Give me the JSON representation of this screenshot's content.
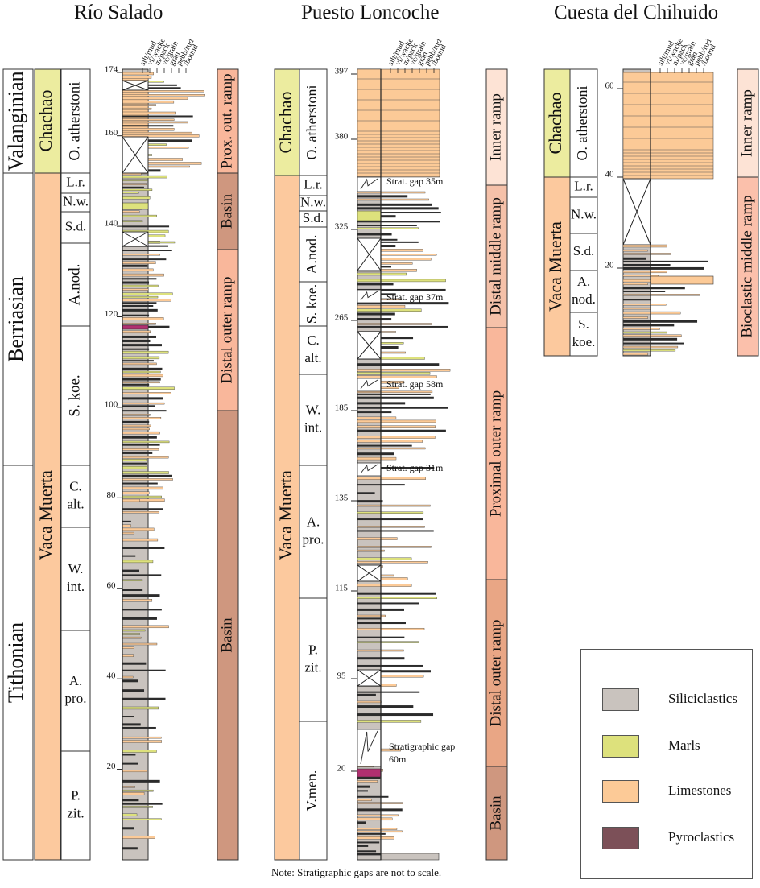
{
  "colors": {
    "siliciclastics": "#c9c3be",
    "marls": "#dde17c",
    "limestones": "#fcca97",
    "pyroclastics": "#7c5058",
    "bed_pyroclastic": "#b03070",
    "stage_fill": "#ffffff",
    "formation_chachao": "#ecec9f",
    "formation_vaca_muerta": "#fcc99e",
    "env_inner_ramp": "#fde3d5",
    "env_prox_outer_ramp": "#f9b79b",
    "env_distal_outer_ramp": "#e9a685",
    "env_basin": "#cf977f",
    "env_distal_middle_ramp": "#f5c1a9",
    "env_bioclastic_middle_ramp": "#fbc0ab"
  },
  "grain_scale": [
    "silt/mud",
    "vf/wacke",
    "m/pack",
    "vc/grain",
    "gran",
    "pebb/rud",
    "/bound"
  ],
  "sections": [
    {
      "name": "Río Salado",
      "ticks": [
        "20",
        "40",
        "60",
        "80",
        "100",
        "120",
        "140",
        "160",
        "174"
      ],
      "stages": [
        "Valanginian",
        "Berriasian",
        "Tithonian"
      ],
      "formations": [
        "Chachao",
        "Vaca Muerta"
      ],
      "zones": [
        "O. atherstoni",
        "L.r.",
        "N.w.",
        "S.d.",
        "A.nod.",
        "S. koe.",
        "C. alt.",
        "W. int.",
        "A. pro.",
        "P. zit."
      ],
      "environments": [
        "Prox. out. ramp",
        "Basin",
        "Distal outer ramp",
        "Basin"
      ]
    },
    {
      "name": "Puesto Loncoche",
      "ticks": [
        "20",
        "95",
        "115",
        "135",
        "185",
        "265",
        "325",
        "380",
        "397"
      ],
      "formations": [
        "Chachao",
        "Vaca Muerta"
      ],
      "zones": [
        "O. atherstoni",
        "L.r.",
        "N.w.",
        "S.d.",
        "A.nod.",
        "S. koe.",
        "C. alt.",
        "W. int.",
        "A. pro.",
        "P. zit.",
        "V.men."
      ],
      "environments": [
        "Inner ramp",
        "Distal middle ramp",
        "Proximal outer ramp",
        "Distal outer ramp",
        "Basin"
      ],
      "gaps": [
        "Strat. gap 35m",
        "Strat. gap 37m",
        "Strat. gap 58m",
        "Strat. gap 31m",
        "Stratigraphic gap 60m"
      ]
    },
    {
      "name": "Cuesta del Chihuido",
      "ticks": [
        "20",
        "40",
        "60"
      ],
      "formations": [
        "Chachao",
        "Vaca Muerta"
      ],
      "zones": [
        "O. atherstoni",
        "L.r.",
        "N.w.",
        "S.d.",
        "A. nod.",
        "S. koe."
      ],
      "environments": [
        "Inner ramp",
        "Bioclastic middle ramp"
      ]
    }
  ],
  "legend": [
    {
      "label": "Siliciclastics",
      "color_key": "siliciclastics"
    },
    {
      "label": "Marls",
      "color_key": "marls"
    },
    {
      "label": "Limestones",
      "color_key": "limestones"
    },
    {
      "label": "Pyroclastics",
      "color_key": "pyroclastics"
    }
  ],
  "note": "Note: Stratigraphic gaps are not to scale."
}
